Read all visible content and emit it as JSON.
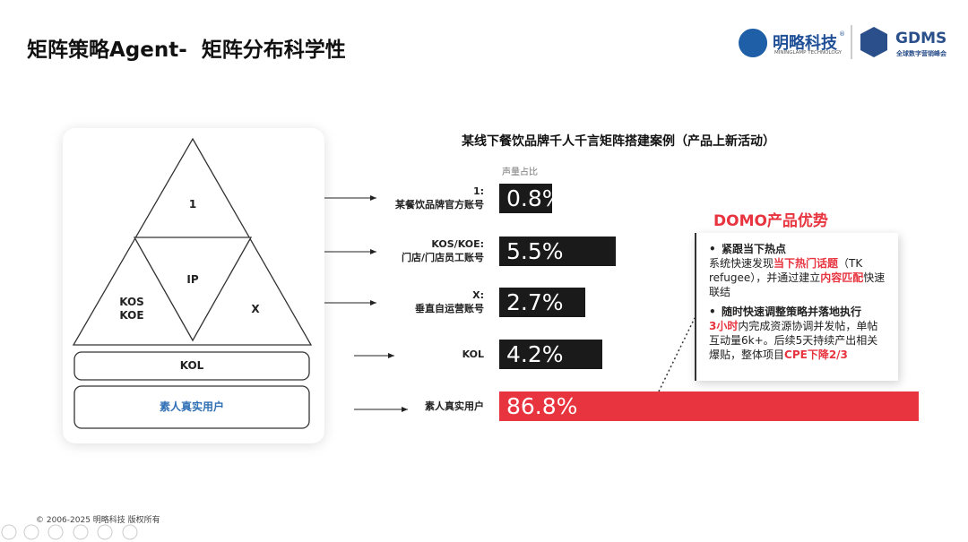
{
  "header": {
    "title": "矩阵策略Agent-  矩阵分布科学性",
    "logo_name": "明略科技",
    "logo_mark": "®",
    "logo_subtitle": "MININGLAMP TECHNOLOGY",
    "partner_name": "GDMS",
    "partner_subtitle": "全球数字营销峰会"
  },
  "diagram": {
    "top": "1",
    "center": "IP",
    "left": "KOS\nKOE",
    "right": "X",
    "band": "KOL",
    "base": "素人真实用户"
  },
  "chart_data": {
    "type": "bar",
    "title": "某线下餐饮品牌千人千言矩阵搭建案例（产品上新活动）",
    "value_title": "声量占比",
    "categories": [
      "1:\n某餐饮品牌官方账号",
      "KOS/KOE:\n门店/门店员工账号",
      "X:\n垂直自运营账号",
      "KOL",
      "素人真实用户"
    ],
    "values": [
      0.8,
      5.5,
      2.7,
      4.2,
      86.8
    ],
    "value_labels": [
      "0.8%",
      "5.5%",
      "2.7%",
      "4.2%",
      "86.8%"
    ],
    "colors": [
      "#1a1a1a",
      "#1a1a1a",
      "#1a1a1a",
      "#1a1a1a",
      "#e8343f"
    ]
  },
  "callout": {
    "title": "DOMO产品优势",
    "bullets": [
      {
        "heading": "紧跟当下热点",
        "runs": [
          "系统快速发现",
          {
            "text": "当下热门话题",
            "style": "highlight"
          },
          "（TK refugee），并通过建立",
          {
            "text": "内容匹配",
            "style": "highlight"
          },
          "快速联结"
        ]
      },
      {
        "heading": "随时快速调整策略并落地执行",
        "runs": [
          {
            "text": "3小时",
            "style": "highlight"
          },
          "内完成资源协调并发帖，单帖互动量6k+。后续5天持续产出相关爆贴，整体项目",
          {
            "text": "CPE下降2/3",
            "style": "highlight"
          }
        ]
      }
    ]
  },
  "footer": {
    "copyright": "© 2006-2025 明略科技 版权所有"
  }
}
